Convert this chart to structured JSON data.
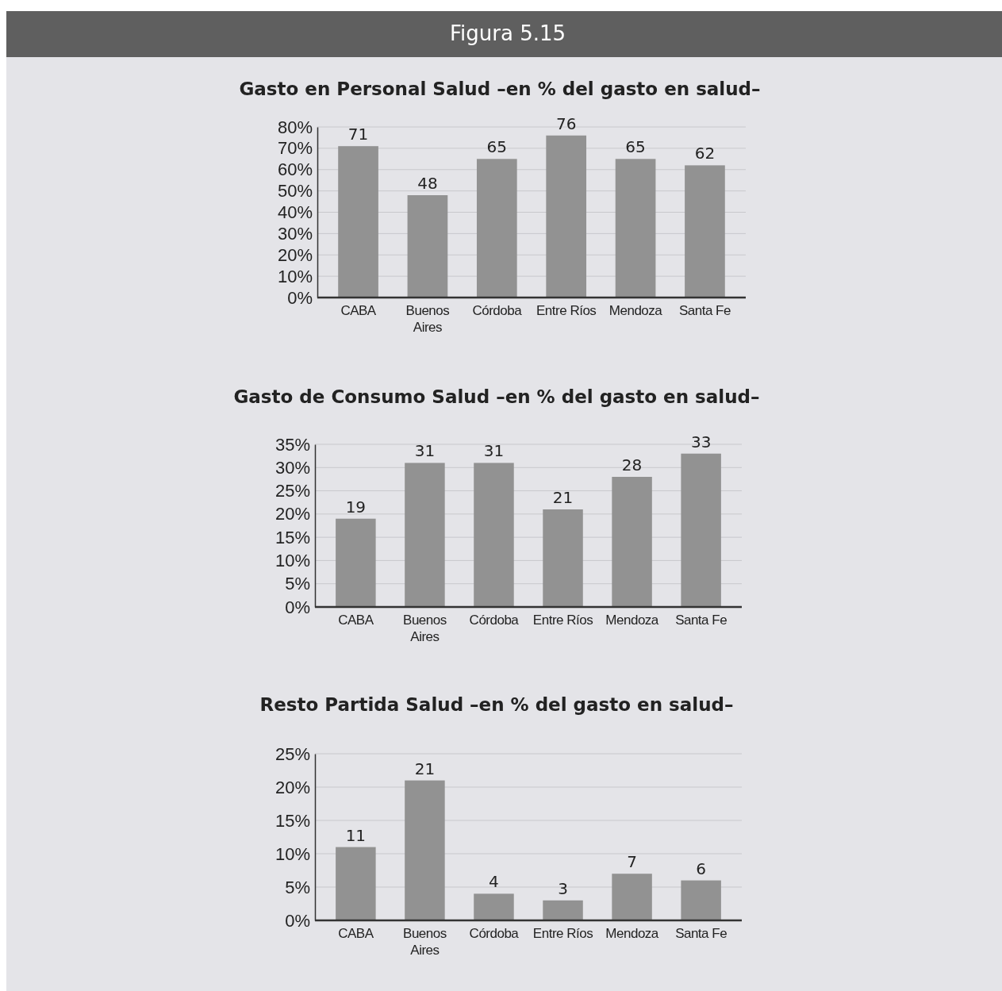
{
  "chart_data": [
    {
      "type": "bar",
      "title": "Gasto en Personal Salud –en % del gasto en salud–",
      "annotations": [
        "Figura 5.15"
      ],
      "categories": [
        "CABA",
        "Buenos Aires",
        "Córdoba",
        "Entre Ríos",
        "Mendoza",
        "Santa Fe"
      ],
      "values": [
        71,
        48,
        65,
        76,
        65,
        62
      ],
      "color": "#929292",
      "ylim": [
        0,
        80
      ],
      "yticks": [
        {
          "value": 0,
          "label": "0%"
        },
        {
          "value": 10,
          "label": "10%"
        },
        {
          "value": 20,
          "label": "20%"
        },
        {
          "value": 30,
          "label": "30%"
        },
        {
          "value": 40,
          "label": "40%"
        },
        {
          "value": 50,
          "label": "50%"
        },
        {
          "value": 60,
          "label": "60%"
        },
        {
          "value": 70,
          "label": "70%"
        },
        {
          "value": 80,
          "label": "80%"
        }
      ],
      "grid": "y",
      "data_labels": true
    },
    {
      "type": "bar",
      "title": "Gasto de Consumo Salud –en % del gasto en salud–",
      "categories": [
        "CABA",
        "Buenos Aires",
        "Córdoba",
        "Entre Ríos",
        "Mendoza",
        "Santa Fe"
      ],
      "values": [
        19,
        31,
        31,
        21,
        28,
        33
      ],
      "color": "#929292",
      "ylim": [
        0,
        35
      ],
      "yticks": [
        {
          "value": 0,
          "label": "0%"
        },
        {
          "value": 5,
          "label": "5%"
        },
        {
          "value": 10,
          "label": "10%"
        },
        {
          "value": 15,
          "label": "15%"
        },
        {
          "value": 20,
          "label": "20%"
        },
        {
          "value": 25,
          "label": "25%"
        },
        {
          "value": 30,
          "label": "30%"
        },
        {
          "value": 35,
          "label": "35%"
        }
      ],
      "grid": "y",
      "data_labels": true
    },
    {
      "type": "bar",
      "title": "Resto Partida Salud –en % del gasto en salud–",
      "categories": [
        "CABA",
        "Buenos Aires",
        "Córdoba",
        "Entre Ríos",
        "Mendoza",
        "Santa Fe"
      ],
      "values": [
        11,
        21,
        4,
        3,
        7,
        6
      ],
      "color": "#929292",
      "ylim": [
        0,
        25
      ],
      "yticks": [
        {
          "value": 0,
          "label": "0%"
        },
        {
          "value": 5,
          "label": "5%"
        },
        {
          "value": 10,
          "label": "10%"
        },
        {
          "value": 15,
          "label": "15%"
        },
        {
          "value": 20,
          "label": "20%"
        },
        {
          "value": 25,
          "label": "25%"
        }
      ],
      "grid": "y",
      "data_labels": true
    }
  ]
}
